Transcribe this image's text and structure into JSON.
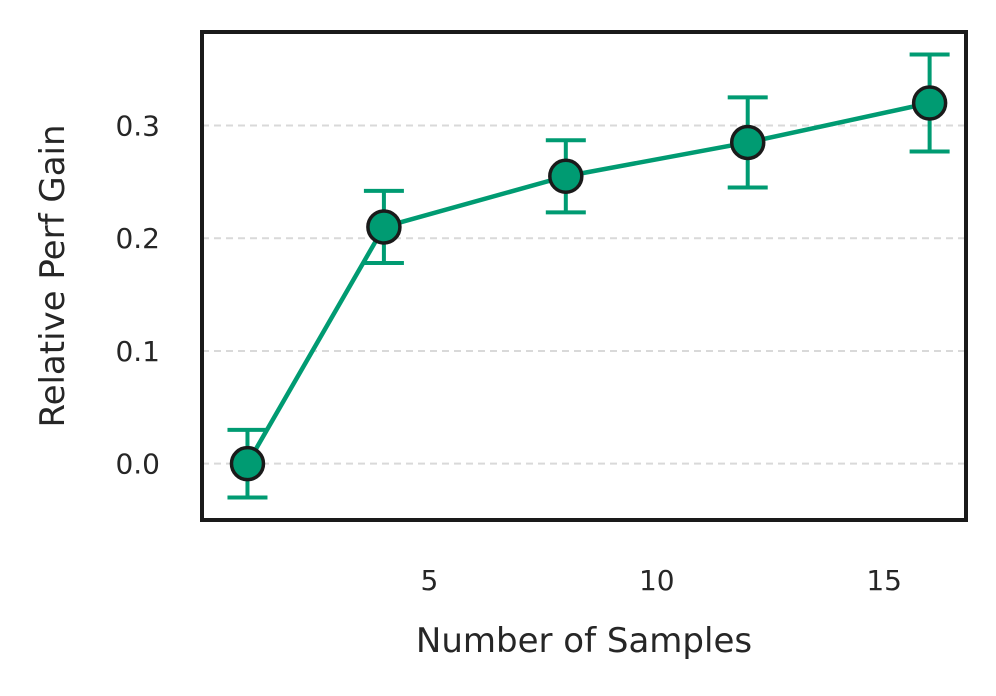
{
  "chart_data": {
    "type": "line",
    "title": "",
    "xlabel": "Number of Samples",
    "ylabel": "Relative Perf Gain",
    "x": [
      1,
      4,
      8,
      12,
      16
    ],
    "series": [
      {
        "values": [
          0.0,
          0.21,
          0.255,
          0.285,
          0.32
        ],
        "error": [
          0.03,
          0.032,
          0.032,
          0.04,
          0.043
        ],
        "color": "#009b72",
        "marker_edge_color": "#1a1a1a"
      }
    ],
    "xticks": [
      5,
      10,
      15
    ],
    "yticks": [
      0.0,
      0.1,
      0.2,
      0.3
    ],
    "ytick_labels": [
      "0.0",
      "0.1",
      "0.2",
      "0.3"
    ],
    "xlim": [
      0.0,
      16.8
    ],
    "ylim": [
      -0.05,
      0.383
    ],
    "grid": "horizontal-dashed",
    "legend": "none"
  }
}
